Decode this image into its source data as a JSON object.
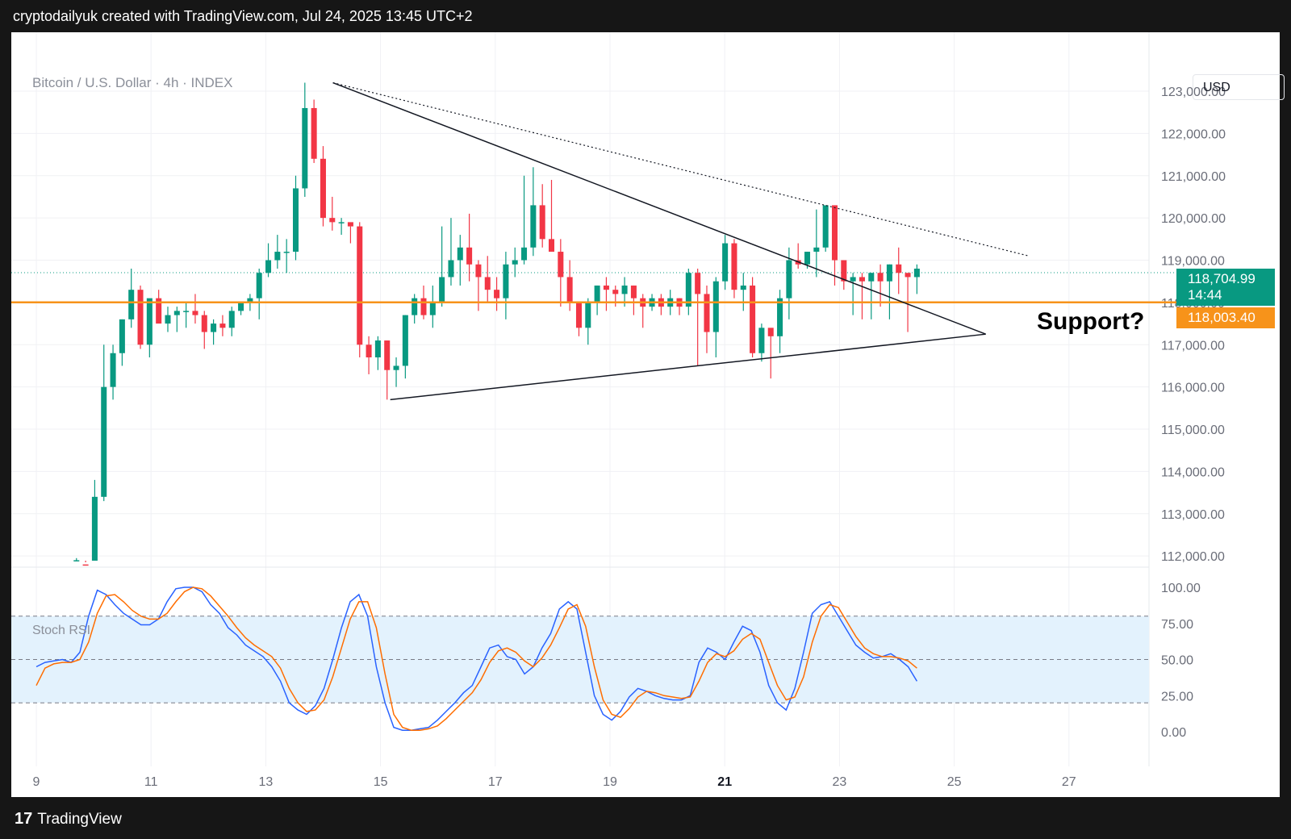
{
  "header": {
    "attribution": "cryptodailyuk created with TradingView.com, Jul 24, 2025 13:45 UTC+2"
  },
  "symbol": "Bitcoin / U.S. Dollar · 4h · INDEX",
  "currency": "USD",
  "last_price": "118,704.99",
  "countdown": "14:44",
  "support_price": "118,003.40",
  "annotation": "Support?",
  "footer": {
    "brand": "TradingView"
  },
  "colors": {
    "up": "#089981",
    "down": "#f23645",
    "support": "#f7931a",
    "k_line": "#2962ff",
    "d_line": "#ff6d00",
    "band": "#e3f2fd"
  },
  "chart_data": [
    {
      "type": "candlestick",
      "title": "Bitcoin / U.S. Dollar · 4h · INDEX",
      "ylim": [
        111700,
        123600
      ],
      "y_ticks": [
        "123,000.00",
        "122,000.00",
        "121,000.00",
        "120,000.00",
        "119,000.00",
        "118,000.00",
        "117,000.00",
        "116,000.00",
        "115,000.00",
        "114,000.00",
        "113,000.00",
        "112,000.00"
      ],
      "x_ticks": [
        "9",
        "11",
        "13",
        "15",
        "17",
        "19",
        "21",
        "23",
        "25",
        "27"
      ],
      "x_tick_days": [
        9,
        11,
        13,
        15,
        17,
        19,
        21,
        23,
        25,
        27
      ],
      "highlight_tick": "21",
      "candles_ohlc": [
        [
          111800,
          111950,
          111750,
          111900
        ],
        [
          111800,
          111850,
          111700,
          111750
        ],
        [
          111700,
          113800,
          111700,
          113400
        ],
        [
          113400,
          117000,
          113300,
          116000
        ],
        [
          116000,
          117000,
          115700,
          116800
        ],
        [
          116800,
          117600,
          116500,
          117600
        ],
        [
          117600,
          118800,
          117400,
          118300
        ],
        [
          118300,
          118400,
          116900,
          117000
        ],
        [
          117000,
          118000,
          116700,
          118100
        ],
        [
          118100,
          118300,
          117700,
          117500
        ],
        [
          117500,
          117900,
          117300,
          117700
        ],
        [
          117700,
          117900,
          117300,
          117800
        ],
        [
          117800,
          118000,
          117400,
          117800
        ],
        [
          117800,
          118200,
          117500,
          117700
        ],
        [
          117700,
          117800,
          116900,
          117300
        ],
        [
          117300,
          117600,
          117000,
          117500
        ],
        [
          117500,
          117700,
          117200,
          117400
        ],
        [
          117400,
          117900,
          117200,
          117800
        ],
        [
          117800,
          118000,
          117700,
          118000
        ],
        [
          118000,
          118200,
          117800,
          118100
        ],
        [
          118100,
          118800,
          117600,
          118700
        ],
        [
          118700,
          119400,
          118600,
          119000
        ],
        [
          119000,
          119600,
          118800,
          119200
        ],
        [
          119200,
          119500,
          118700,
          119200
        ],
        [
          119200,
          121000,
          119000,
          120700
        ],
        [
          120700,
          123200,
          120500,
          122600
        ],
        [
          122600,
          122800,
          121300,
          121400
        ],
        [
          121400,
          121700,
          119800,
          120000
        ],
        [
          120000,
          120500,
          119700,
          119900
        ],
        [
          119900,
          120000,
          119600,
          119900
        ],
        [
          119900,
          119800,
          119400,
          119800
        ],
        [
          119800,
          119900,
          116700,
          117000
        ],
        [
          117000,
          117200,
          116300,
          116700
        ],
        [
          116700,
          117200,
          116400,
          117100
        ],
        [
          117100,
          117100,
          115700,
          116400
        ],
        [
          116400,
          116700,
          116000,
          116500
        ],
        [
          116500,
          117700,
          116200,
          117700
        ],
        [
          117700,
          118200,
          117500,
          118100
        ],
        [
          118100,
          118400,
          117600,
          117700
        ],
        [
          117700,
          118400,
          117400,
          118000
        ],
        [
          118000,
          119800,
          117900,
          118600
        ],
        [
          118600,
          120000,
          118400,
          119000
        ],
        [
          119000,
          119600,
          118400,
          119300
        ],
        [
          119300,
          120100,
          118500,
          118900
        ],
        [
          118900,
          119000,
          117800,
          118600
        ],
        [
          118600,
          119100,
          118000,
          118300
        ],
        [
          118300,
          118600,
          117800,
          118100
        ],
        [
          118100,
          119200,
          117600,
          118900
        ],
        [
          118900,
          119300,
          118600,
          119000
        ],
        [
          119000,
          121000,
          118900,
          119300
        ],
        [
          119300,
          121200,
          119100,
          120300
        ],
        [
          120300,
          120800,
          119300,
          119500
        ],
        [
          119500,
          120900,
          119400,
          119200
        ],
        [
          119200,
          119500,
          117900,
          118600
        ],
        [
          118600,
          119000,
          117800,
          118000
        ],
        [
          118000,
          118000,
          117200,
          117400
        ],
        [
          117400,
          118100,
          117000,
          118000
        ],
        [
          118000,
          118400,
          117700,
          118400
        ],
        [
          118400,
          118600,
          117800,
          118300
        ],
        [
          118300,
          118400,
          117900,
          118200
        ],
        [
          118200,
          118600,
          117900,
          118400
        ],
        [
          118400,
          118400,
          117700,
          118100
        ],
        [
          118100,
          118200,
          117400,
          117900
        ],
        [
          117900,
          118200,
          117800,
          118100
        ],
        [
          118100,
          118200,
          117700,
          117900
        ],
        [
          117900,
          118300,
          117700,
          118100
        ],
        [
          118100,
          118100,
          117700,
          117900
        ],
        [
          117900,
          118800,
          117700,
          118700
        ],
        [
          118700,
          118800,
          116500,
          118200
        ],
        [
          118200,
          118400,
          116800,
          117300
        ],
        [
          117300,
          118600,
          116700,
          118500
        ],
        [
          118500,
          119600,
          118300,
          119400
        ],
        [
          119400,
          119500,
          118100,
          118300
        ],
        [
          118300,
          118700,
          117800,
          118400
        ],
        [
          118400,
          118600,
          116700,
          116800
        ],
        [
          116800,
          117500,
          116600,
          117400
        ],
        [
          117400,
          117300,
          116200,
          117200
        ],
        [
          117200,
          118300,
          116800,
          118100
        ],
        [
          118100,
          119300,
          117600,
          119000
        ],
        [
          119000,
          119400,
          118800,
          118900
        ],
        [
          118900,
          119200,
          118800,
          119200
        ],
        [
          119200,
          120200,
          118600,
          119300
        ],
        [
          119300,
          120200,
          119200,
          120300
        ],
        [
          120300,
          120200,
          118400,
          119000
        ],
        [
          119000,
          119000,
          118300,
          118500
        ],
        [
          118500,
          118700,
          117700,
          118600
        ],
        [
          118600,
          118700,
          117600,
          118500
        ],
        [
          118500,
          118700,
          117600,
          118700
        ],
        [
          118700,
          118900,
          117900,
          118500
        ],
        [
          118500,
          118900,
          117600,
          118900
        ],
        [
          118900,
          119300,
          118200,
          118700
        ],
        [
          118700,
          118600,
          117300,
          118600
        ],
        [
          118600,
          118900,
          118200,
          118800
        ]
      ],
      "horizontal_lines": [
        {
          "name": "Support",
          "price": 118003.4
        },
        {
          "name": "Last price",
          "price": 118704.99
        }
      ],
      "trend_lines": [
        {
          "name": "Upper trend line",
          "points": [
            [
              14.17,
              123200
            ],
            [
              25.55,
              117250
            ]
          ]
        },
        {
          "name": "Lower trend line",
          "points": [
            [
              15.17,
              115700
            ],
            [
              25.55,
              117250
            ]
          ]
        },
        {
          "name": "Dotted upper line",
          "points": [
            [
              14.17,
              123200
            ],
            [
              26.3,
              119100
            ]
          ]
        }
      ]
    },
    {
      "type": "line",
      "title": "Stoch RSI",
      "ylim": [
        -5,
        105
      ],
      "y_ticks": [
        "100.00",
        "75.00",
        "50.00",
        "25.00",
        "0.00"
      ],
      "band": [
        20,
        80
      ],
      "series": [
        {
          "values": [
            45,
            48,
            49,
            50,
            48,
            55,
            80,
            98,
            95,
            88,
            82,
            78,
            74,
            74,
            78,
            90,
            99,
            100,
            100,
            97,
            88,
            82,
            72,
            67,
            60,
            56,
            52,
            45,
            35,
            20,
            15,
            12,
            18,
            30,
            50,
            72,
            90,
            95,
            80,
            45,
            20,
            3,
            1,
            1,
            2,
            3,
            8,
            14,
            20,
            27,
            32,
            45,
            58,
            60,
            52,
            50,
            40,
            45,
            58,
            68,
            85,
            90,
            85,
            55,
            25,
            12,
            8,
            14,
            24,
            30,
            28,
            25,
            23,
            22,
            22,
            25,
            48,
            58,
            55,
            50,
            62,
            73,
            70,
            55,
            32,
            20,
            15,
            30,
            55,
            82,
            88,
            90,
            80,
            70,
            60,
            55,
            51,
            52,
            54,
            50,
            45,
            35
          ]
        },
        {
          "values": [
            32,
            44,
            47,
            48,
            48,
            50,
            62,
            82,
            94,
            95,
            90,
            84,
            80,
            78,
            78,
            82,
            90,
            97,
            100,
            99,
            94,
            87,
            80,
            72,
            65,
            60,
            56,
            52,
            44,
            30,
            20,
            14,
            15,
            22,
            38,
            58,
            78,
            90,
            90,
            72,
            40,
            12,
            3,
            1,
            1,
            2,
            4,
            9,
            15,
            21,
            27,
            36,
            48,
            56,
            58,
            55,
            49,
            45,
            51,
            60,
            72,
            85,
            88,
            73,
            45,
            22,
            12,
            10,
            16,
            24,
            28,
            27,
            25,
            24,
            23,
            24,
            35,
            48,
            54,
            52,
            56,
            64,
            68,
            64,
            48,
            32,
            22,
            24,
            38,
            62,
            80,
            88,
            86,
            76,
            66,
            58,
            54,
            52,
            52,
            51,
            49,
            44
          ]
        }
      ]
    }
  ]
}
